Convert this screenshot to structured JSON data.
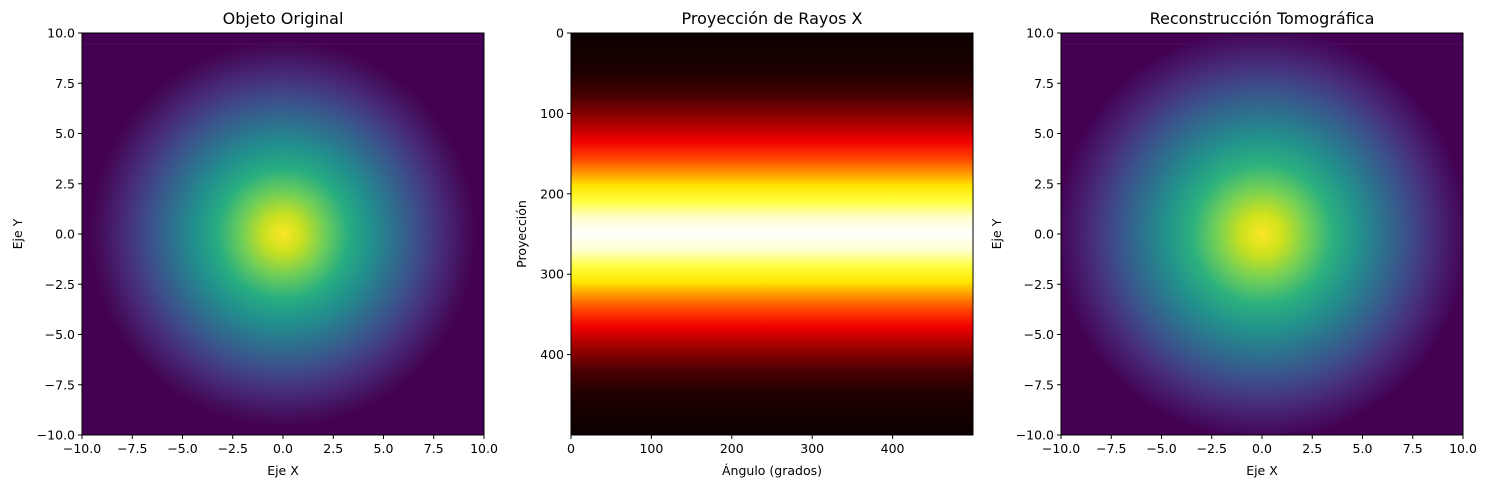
{
  "chart_data": [
    {
      "type": "heatmap",
      "title": "Objeto Original",
      "xlabel": "Eje X",
      "ylabel": "Eje Y",
      "xlim": [
        -10,
        10
      ],
      "ylim": [
        -10,
        10
      ],
      "xticks": [
        "−10.0",
        "−7.5",
        "−5.0",
        "−2.5",
        "0.0",
        "2.5",
        "5.0",
        "7.5",
        "10.0"
      ],
      "xtick_values": [
        -10,
        -7.5,
        -5,
        -2.5,
        0,
        2.5,
        5,
        7.5,
        10
      ],
      "yticks": [
        "10.0",
        "7.5",
        "5.0",
        "2.5",
        "0.0",
        "−2.5",
        "−5.0",
        "−7.5",
        "−10.0"
      ],
      "ytick_values": [
        10,
        7.5,
        5,
        2.5,
        0,
        -2.5,
        -5,
        -7.5,
        -10
      ],
      "colormap": "viridis",
      "center": [
        0,
        0
      ],
      "sigma": 3
    },
    {
      "type": "heatmap",
      "title": "Proyección de Rayos X",
      "xlabel": "Ángulo (grados)",
      "ylabel": "Proyección",
      "xlim": [
        0,
        500
      ],
      "ylim": [
        500,
        0
      ],
      "xticks": [
        "0",
        "100",
        "200",
        "300",
        "400"
      ],
      "xtick_values": [
        0,
        100,
        200,
        300,
        400
      ],
      "yticks": [
        "0",
        "100",
        "200",
        "300",
        "400"
      ],
      "ytick_values": [
        0,
        100,
        200,
        300,
        400
      ],
      "colormap": "hot",
      "center": 250,
      "sigma": 75
    },
    {
      "type": "heatmap",
      "title": "Reconstrucción Tomográfica",
      "xlabel": "Eje X",
      "ylabel": "Eje Y",
      "xlim": [
        -10,
        10
      ],
      "ylim": [
        -10,
        10
      ],
      "xticks": [
        "−10.0",
        "−7.5",
        "−5.0",
        "−2.5",
        "0.0",
        "2.5",
        "5.0",
        "7.5",
        "10.0"
      ],
      "xtick_values": [
        -10,
        -7.5,
        -5,
        -2.5,
        0,
        2.5,
        5,
        7.5,
        10
      ],
      "yticks": [
        "10.0",
        "7.5",
        "5.0",
        "2.5",
        "0.0",
        "−2.5",
        "−5.0",
        "−7.5",
        "−10.0"
      ],
      "ytick_values": [
        10,
        7.5,
        5,
        2.5,
        0,
        -2.5,
        -5,
        -7.5,
        -10
      ],
      "colormap": "viridis",
      "center": [
        0,
        0
      ],
      "sigma": 3.2
    }
  ]
}
